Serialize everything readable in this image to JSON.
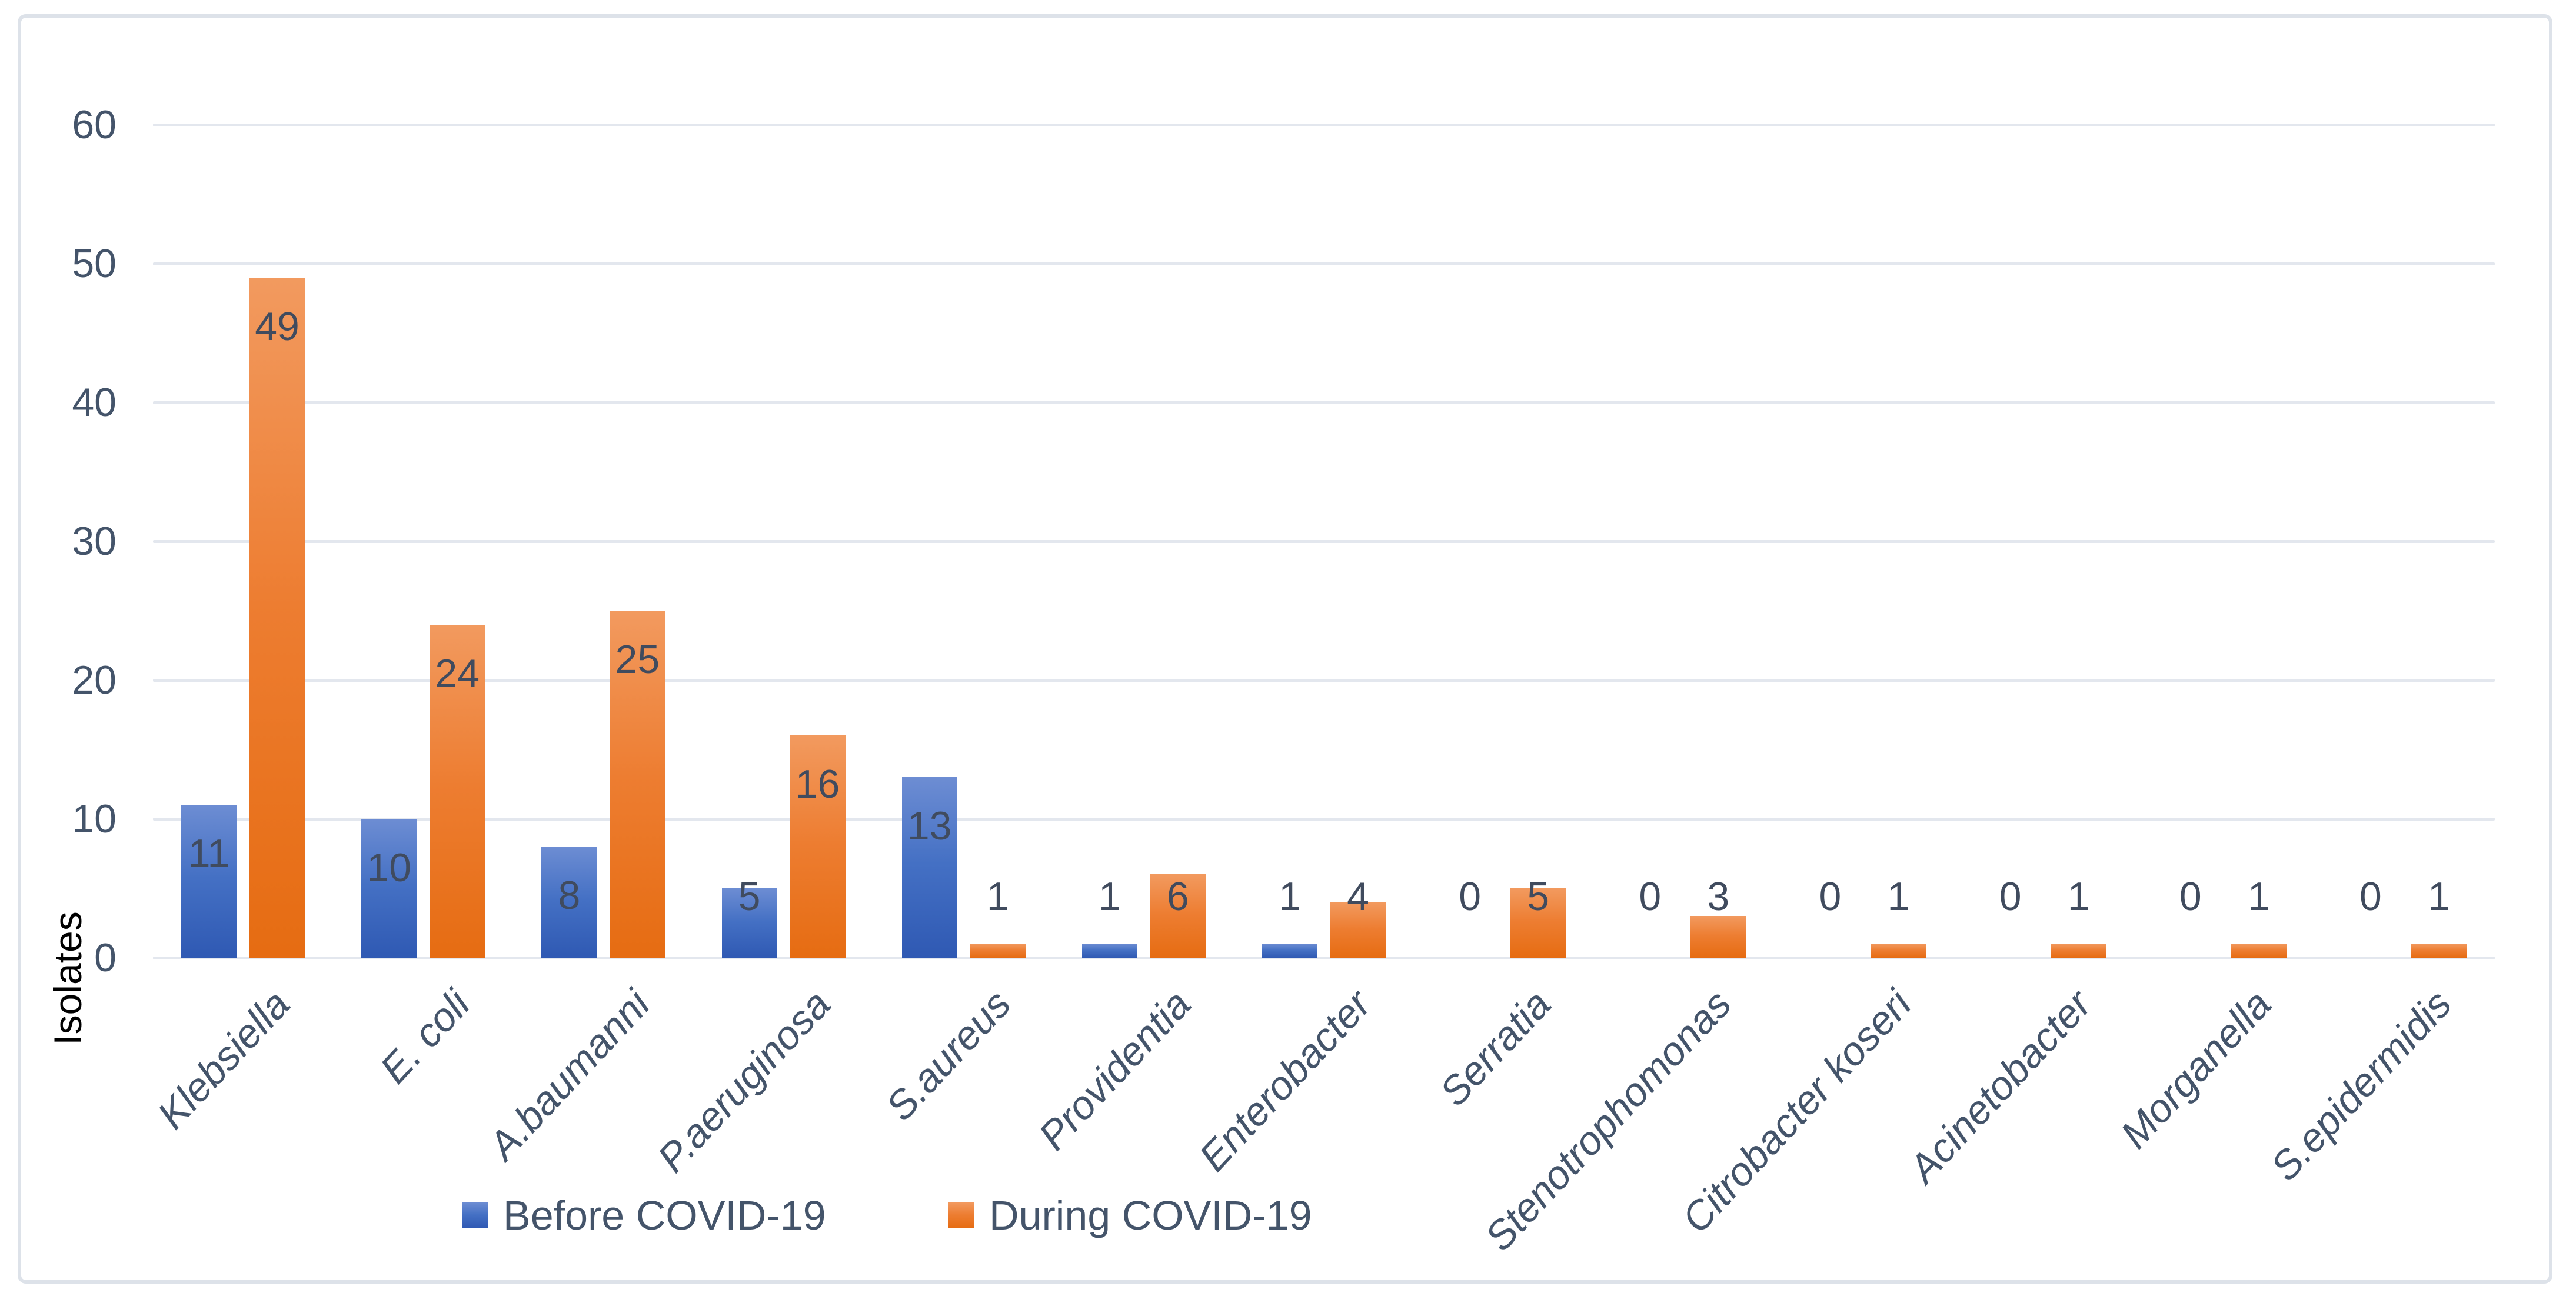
{
  "chart_data": {
    "type": "bar",
    "title": "",
    "categories": [
      "Klebsiella",
      "E. coli",
      "A.baumanni",
      "P.aeruginosa",
      "S.aureus",
      "Providentia",
      "Enterobacter",
      "Serratia",
      "Stenotrophomonas",
      "Citrobacter koseri",
      "Acinetobacter",
      "Morganella",
      "S.epidermidis"
    ],
    "series": [
      {
        "name": "Before COVID-19",
        "color": "#4472C4",
        "values": [
          11,
          10,
          8,
          5,
          13,
          1,
          1,
          0,
          0,
          0,
          0,
          0,
          0
        ]
      },
      {
        "name": "During COVID-19",
        "color": "#ED7D31",
        "values": [
          49,
          24,
          25,
          16,
          1,
          6,
          4,
          5,
          3,
          1,
          1,
          1,
          1
        ]
      }
    ],
    "xlabel": "",
    "ylabel": "Isolates",
    "ylim": [
      0,
      60
    ],
    "yticks": [
      0,
      10,
      20,
      30,
      40,
      50,
      60
    ],
    "grid": true,
    "legend_position": "bottom",
    "category_label_style": "italic rotated -47deg",
    "data_labels": "shown on every bar"
  },
  "colors": {
    "bar_blue_top": "#6D8DD3",
    "bar_blue_bottom": "#2F59B3",
    "bar_orange_top": "#F29A5F",
    "bar_orange_bottom": "#E66C12",
    "gridline": "#E3E7EE",
    "frame_border": "#DDE2E9",
    "axis_text": "#44546A",
    "data_label_text": "#404B5E",
    "y_axis_title_text": "#000000",
    "background": "#FFFFFF"
  }
}
